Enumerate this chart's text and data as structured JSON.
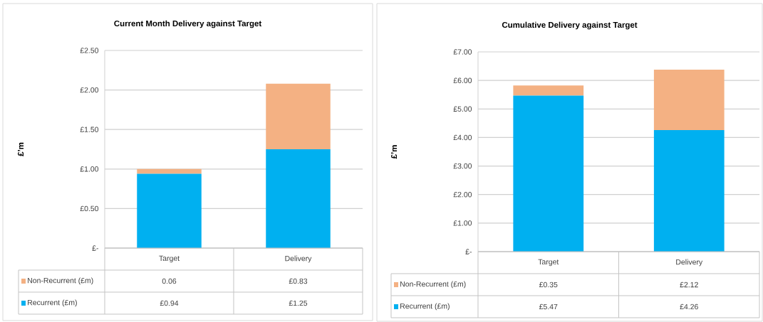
{
  "chart_data": [
    {
      "type": "bar",
      "stacked": true,
      "title": "Current Month Delivery against Target",
      "ylabel": "£’m",
      "categories": [
        "Target",
        "Delivery"
      ],
      "series": [
        {
          "name": "Recurrent (£m)",
          "color": "#00b0f0",
          "values": [
            0.94,
            1.25
          ],
          "value_labels": [
            "£0.94",
            "£1.25"
          ]
        },
        {
          "name": "Non-Recurrent (£m)",
          "color": "#f4b183",
          "values": [
            0.06,
            0.83
          ],
          "value_labels": [
            "0.06",
            "£0.83"
          ]
        }
      ],
      "ylim": [
        0,
        2.5
      ],
      "yticks": [
        {
          "value": 0,
          "label": "£-"
        },
        {
          "value": 0.5,
          "label": "£0.50"
        },
        {
          "value": 1,
          "label": "£1.00"
        },
        {
          "value": 1.5,
          "label": "£1.50"
        },
        {
          "value": 2,
          "label": "£2.00"
        },
        {
          "value": 2.5,
          "label": "£2.50"
        }
      ],
      "grid": "y",
      "legend": "bottom left"
    },
    {
      "type": "bar",
      "stacked": true,
      "title": "Cumulative Delivery against Target",
      "ylabel": "£’m",
      "categories": [
        "Target",
        "Delivery"
      ],
      "series": [
        {
          "name": "Recurrent (£m)",
          "color": "#00b0f0",
          "values": [
            5.47,
            4.26
          ],
          "value_labels": [
            "£5.47",
            "£4.26"
          ]
        },
        {
          "name": "Non-Recurrent (£m)",
          "color": "#f4b183",
          "values": [
            0.35,
            2.12
          ],
          "value_labels": [
            "£0.35",
            "£2.12"
          ]
        }
      ],
      "ylim": [
        0,
        7
      ],
      "yticks": [
        {
          "value": 0,
          "label": "£-"
        },
        {
          "value": 1,
          "label": "£1.00"
        },
        {
          "value": 2,
          "label": "£2.00"
        },
        {
          "value": 3,
          "label": "£3.00"
        },
        {
          "value": 4,
          "label": "£4.00"
        },
        {
          "value": 5,
          "label": "£5.00"
        },
        {
          "value": 6,
          "label": "£6.00"
        },
        {
          "value": 7,
          "label": "£7.00"
        }
      ],
      "grid": "y",
      "legend": "bottom left"
    }
  ]
}
